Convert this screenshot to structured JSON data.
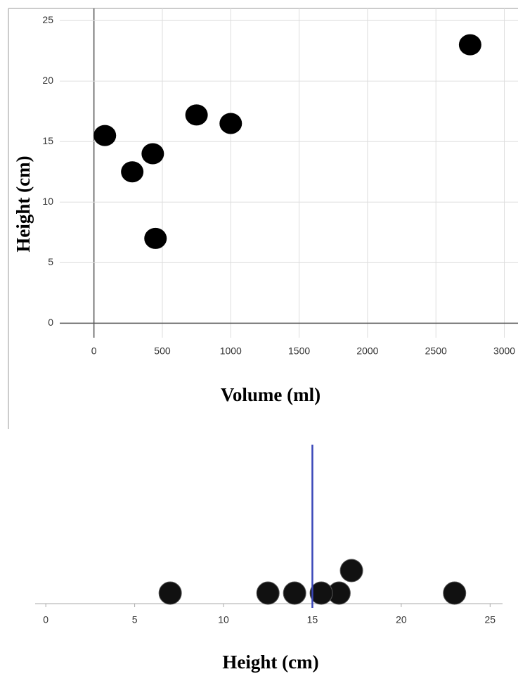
{
  "chart_data": [
    {
      "type": "scatter",
      "x_label": "Volume (ml)",
      "y_label": "Height (cm)",
      "x": [
        80,
        280,
        430,
        450,
        750,
        1000,
        2750
      ],
      "values": [
        15.5,
        12.5,
        14,
        7,
        17.2,
        16.5,
        23
      ],
      "color": "#000000",
      "xlim": [
        -250,
        3100
      ],
      "ylim": [
        -1.2,
        26
      ],
      "xticks": [
        0,
        500,
        1000,
        1500,
        2000,
        2500,
        3000
      ],
      "yticks": [
        0,
        5,
        10,
        15,
        20,
        25
      ],
      "grid": true
    },
    {
      "type": "dot",
      "x_label": "Height (cm)",
      "values": [
        7,
        12.5,
        14,
        16.5,
        17.2,
        15.5,
        23
      ],
      "color": "#111111",
      "xlim": [
        -0.6,
        25.7
      ],
      "xticks": [
        0,
        5,
        10,
        15,
        20,
        25
      ],
      "reference_line": 15,
      "reference_color": "#3a47b8"
    }
  ]
}
